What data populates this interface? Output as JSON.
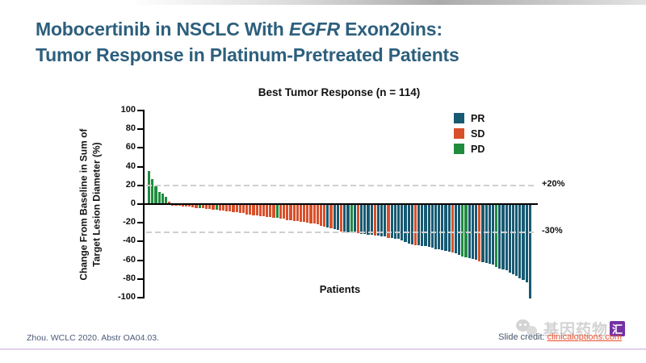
{
  "slide": {
    "title_line1_pre": "Mobocertinib in NSCLC With ",
    "title_italic": "EGFR",
    "title_line1_post": " Exon20ins:",
    "title_line2": "Tumor Response in Platinum-Pretreated Patients",
    "title_color": "#2d5f7d",
    "footer_reference": "Zhou. WCLC 2020. Abstr OA04.03.",
    "credit_label": "Slide credit: ",
    "credit_link": "clinicaloptions.com",
    "watermark_text": "基因药物",
    "watermark_badge": "汇",
    "accent_purple": "#7e4198"
  },
  "chart_data": {
    "type": "bar",
    "title": "Best Tumor Response (n = 114)",
    "xlabel": "Patients",
    "ylabel": "Change From Baseline in Sum of Target Lesion Diameter (%)",
    "ylabel_line1": "Change From Baseline in Sum of",
    "ylabel_line2": "Target Lesion Diameter (%)",
    "n": 114,
    "ylim": [
      -100,
      100
    ],
    "yticks": [
      100,
      80,
      60,
      40,
      20,
      0,
      -20,
      -40,
      -60,
      -80,
      -100
    ],
    "grid": false,
    "legend_position": "upper right",
    "reference_lines": [
      {
        "value": 20,
        "label": "+20%"
      },
      {
        "value": -30,
        "label": "-30%"
      }
    ],
    "legend": [
      {
        "label": "PR",
        "color": "#175a72"
      },
      {
        "label": "SD",
        "color": "#d8502a"
      },
      {
        "label": "PD",
        "color": "#1f8c3e"
      }
    ],
    "colors": {
      "PR": "#175a72",
      "SD": "#d8502a",
      "PD": "#1f8c3e"
    },
    "values": [
      35,
      27,
      19,
      13,
      11,
      8,
      3,
      -0.5,
      -1,
      -1,
      -1.5,
      -2,
      -2,
      -2.5,
      -3,
      -3,
      -3.5,
      -4,
      -4.5,
      -5,
      -5,
      -6,
      -6,
      -7,
      -7,
      -8,
      -8,
      -9,
      -9,
      -10,
      -10,
      -11,
      -11,
      -12,
      -12,
      -13,
      -13,
      -14,
      -14,
      -15,
      -15,
      -16,
      -16,
      -17,
      -17,
      -18,
      -18,
      -19,
      -20,
      -20,
      -21,
      -22,
      -23,
      -24,
      -25,
      -26,
      -27,
      -28,
      -28,
      -29,
      -29,
      -30,
      -30,
      -31,
      -31,
      -32,
      -32,
      -33,
      -33,
      -34,
      -34,
      -35,
      -35,
      -36,
      -36,
      -38,
      -40,
      -41,
      -42,
      -43,
      -43,
      -44,
      -44,
      -45,
      -46,
      -47,
      -47,
      -48,
      -49,
      -50,
      -51,
      -52,
      -53,
      -55,
      -56,
      -57,
      -58,
      -59,
      -60,
      -61,
      -62,
      -63,
      -64,
      -66,
      -68,
      -69,
      -70,
      -72,
      -74,
      -76,
      -78,
      -80,
      -83,
      -100
    ],
    "responses": [
      "PD",
      "PD",
      "PD",
      "PD",
      "PD",
      "PD",
      "SD",
      "SD",
      "SD",
      "SD",
      "SD",
      "SD",
      "SD",
      "SD",
      "SD",
      "PD",
      "SD",
      "SD",
      "SD",
      "SD",
      "PD",
      "SD",
      "SD",
      "SD",
      "SD",
      "SD",
      "SD",
      "SD",
      "SD",
      "SD",
      "SD",
      "SD",
      "SD",
      "SD",
      "SD",
      "SD",
      "SD",
      "SD",
      "PD",
      "SD",
      "SD",
      "SD",
      "SD",
      "SD",
      "SD",
      "SD",
      "SD",
      "SD",
      "SD",
      "SD",
      "SD",
      "SD",
      "SD",
      "PR",
      "SD",
      "PR",
      "PR",
      "SD",
      "PR",
      "PR",
      "PD",
      "PR",
      "SD",
      "PR",
      "PR",
      "PR",
      "PR",
      "SD",
      "PR",
      "PR",
      "PR",
      "SD",
      "PR",
      "PR",
      "PR",
      "PR",
      "PR",
      "PR",
      "PR",
      "SD",
      "PR",
      "PR",
      "PR",
      "PR",
      "PR",
      "PR",
      "PR",
      "PR",
      "PR",
      "PR",
      "SD",
      "PR",
      "PR",
      "PD",
      "PD",
      "PR",
      "PR",
      "PR",
      "SD",
      "PR",
      "PR",
      "PR",
      "PR",
      "PD",
      "PR",
      "PR",
      "PR",
      "PR",
      "PR",
      "PR",
      "PR",
      "PR",
      "PR",
      "PR"
    ]
  }
}
